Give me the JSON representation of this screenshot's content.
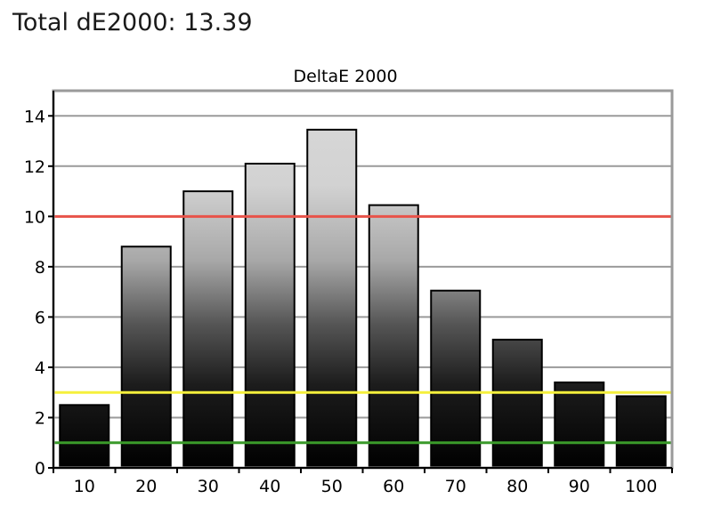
{
  "headline": "Total dE2000: 13.39",
  "chart_data": {
    "type": "bar",
    "title": "DeltaE 2000",
    "xlabel": "",
    "ylabel": "",
    "categories": [
      "10",
      "20",
      "30",
      "40",
      "50",
      "60",
      "70",
      "80",
      "90",
      "100"
    ],
    "values": [
      2.5,
      8.8,
      11.0,
      12.1,
      13.45,
      10.45,
      7.05,
      5.1,
      3.4,
      2.85
    ],
    "ylim": [
      0,
      15
    ],
    "yticks": [
      0,
      2,
      4,
      6,
      8,
      10,
      12,
      14
    ],
    "grid": true,
    "legend": "none",
    "reference_lines": [
      {
        "value": 10,
        "color": "#e8534a"
      },
      {
        "value": 3,
        "color": "#f5f03c"
      },
      {
        "value": 1,
        "color": "#3a9a2a"
      }
    ],
    "bar_gradient": [
      "#d9d9d9",
      "#000000"
    ]
  }
}
